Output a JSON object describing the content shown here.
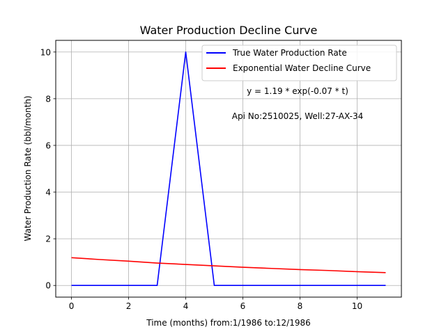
{
  "chart_data": {
    "type": "line",
    "title": "Water Production Decline Curve",
    "xlabel": "Time (months) from:1/1986 to:12/1986",
    "ylabel": "Water Production Rate (bbl/month)",
    "xlim": [
      -0.55,
      11.55
    ],
    "ylim": [
      -0.5,
      10.5
    ],
    "xticks": [
      0,
      2,
      4,
      6,
      8,
      10
    ],
    "yticks": [
      0,
      2,
      4,
      6,
      8,
      10
    ],
    "grid": true,
    "legend_position": "top-right",
    "x": [
      0,
      1,
      2,
      3,
      4,
      5,
      6,
      7,
      8,
      9,
      10,
      11
    ],
    "series": [
      {
        "name": "True Water Production Rate",
        "color": "#0000ff",
        "values": [
          0,
          0,
          0,
          0,
          10,
          0,
          0,
          0,
          0,
          0,
          0,
          0
        ]
      },
      {
        "name": "Exponential Water Decline Curve",
        "color": "#ff0000",
        "values": [
          1.19,
          1.11,
          1.04,
          0.96,
          0.9,
          0.84,
          0.78,
          0.73,
          0.68,
          0.64,
          0.59,
          0.55
        ]
      }
    ],
    "annotations": [
      "y = 1.19 * exp(-0.07 * t)",
      "Api No:2510025, Well:27-AX-34"
    ]
  }
}
